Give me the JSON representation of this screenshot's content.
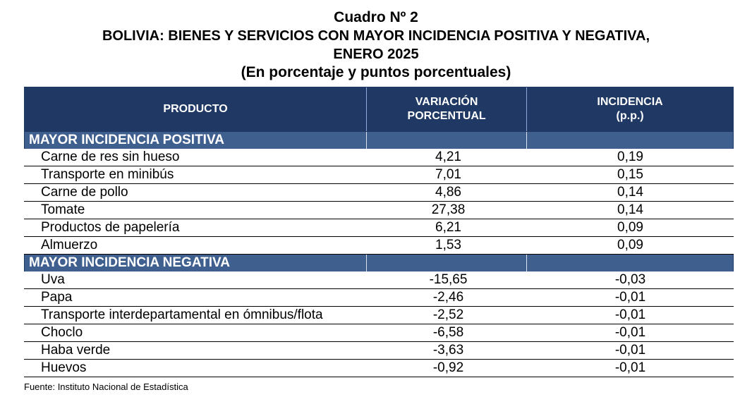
{
  "title": {
    "line1": "Cuadro Nº 2",
    "line2": "BOLIVIA: BIENES Y SERVICIOS CON MAYOR INCIDENCIA POSITIVA Y NEGATIVA,",
    "line3": "ENERO 2025",
    "line4": "(En porcentaje y puntos porcentuales)"
  },
  "table": {
    "headers": {
      "producto": "PRODUCTO",
      "variacion_line1": "VARIACIÓN",
      "variacion_line2": "PORCENTUAL",
      "incidencia_line1": "INCIDENCIA",
      "incidencia_line2": "(p.p.)"
    },
    "positive": {
      "label": "MAYOR INCIDENCIA POSITIVA",
      "rows": [
        {
          "producto": "Carne de res sin hueso",
          "variacion": "4,21",
          "incidencia": "0,19"
        },
        {
          "producto": "Transporte en minibús",
          "variacion": "7,01",
          "incidencia": "0,15"
        },
        {
          "producto": "Carne de pollo",
          "variacion": "4,86",
          "incidencia": "0,14"
        },
        {
          "producto": "Tomate",
          "variacion": "27,38",
          "incidencia": "0,14"
        },
        {
          "producto": "Productos de papelería",
          "variacion": "6,21",
          "incidencia": "0,09"
        },
        {
          "producto": "Almuerzo",
          "variacion": "1,53",
          "incidencia": "0,09"
        }
      ]
    },
    "negative": {
      "label": "MAYOR INCIDENCIA NEGATIVA",
      "rows": [
        {
          "producto": "Uva",
          "variacion": "-15,65",
          "incidencia": "-0,03"
        },
        {
          "producto": "Papa",
          "variacion": "-2,46",
          "incidencia": "-0,01"
        },
        {
          "producto": "Transporte interdepartamental en ómnibus/flota",
          "variacion": "-2,52",
          "incidencia": "-0,01"
        },
        {
          "producto": "Choclo",
          "variacion": "-6,58",
          "incidencia": "-0,01"
        },
        {
          "producto": "Haba verde",
          "variacion": "-3,63",
          "incidencia": "-0,01"
        },
        {
          "producto": "Huevos",
          "variacion": "-0,92",
          "incidencia": "-0,01"
        }
      ]
    }
  },
  "source": "Fuente: Instituto Nacional de Estadística",
  "colors": {
    "header_bg": "#1f3864",
    "section_bg": "#3f5f8f"
  }
}
